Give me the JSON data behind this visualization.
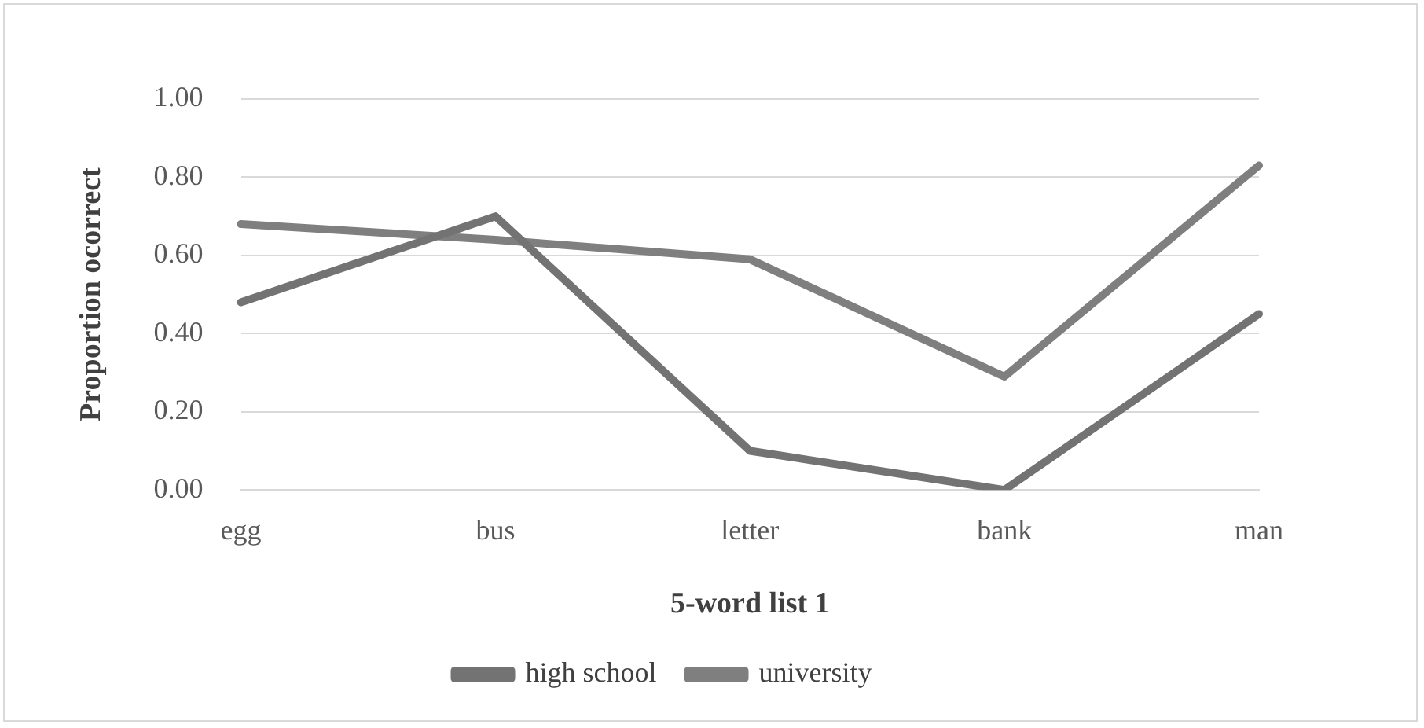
{
  "chart_data": {
    "type": "line",
    "xlabel": "5-word list 1",
    "ylabel": "Proportion ocorrect",
    "categories": [
      "egg",
      "bus",
      "letter",
      "bank",
      "man"
    ],
    "series": [
      {
        "name": "high school",
        "color": "#737373",
        "values": [
          0.48,
          0.7,
          0.1,
          0.0,
          0.45
        ]
      },
      {
        "name": "university",
        "color": "#7f7f7f",
        "values": [
          0.68,
          0.64,
          0.59,
          0.29,
          0.83
        ]
      }
    ],
    "ylim": [
      0,
      1
    ],
    "yticks": [
      {
        "value": 0,
        "label": "0.00"
      },
      {
        "value": 0.2,
        "label": "0.20"
      },
      {
        "value": 0.4,
        "label": "0.40"
      },
      {
        "value": 0.6,
        "label": "0.60"
      },
      {
        "value": 0.8,
        "label": "0.80"
      },
      {
        "value": 1,
        "label": "1.00"
      }
    ],
    "grid": "y",
    "legend": "bottom",
    "marker": "none",
    "line_style": "solid"
  }
}
